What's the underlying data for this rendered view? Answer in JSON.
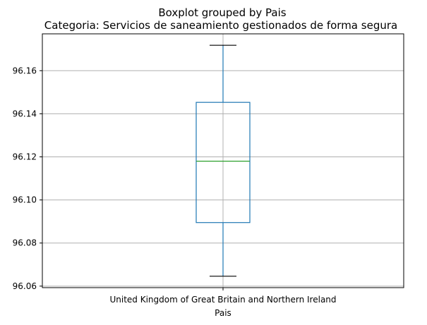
{
  "chart_data": {
    "type": "boxplot",
    "suptitle": "Boxplot grouped by Pais",
    "title": "Categoria: Servicios de saneamiento gestionados de forma segura",
    "xlabel": "Pais",
    "ylabel": "",
    "categories": [
      "United Kingdom of Great Britain and Northern Ireland"
    ],
    "boxes": [
      {
        "category": "United Kingdom of Great Britain and Northern Ireland",
        "whisker_low": 96.0646,
        "q1": 96.0895,
        "median": 96.118,
        "q3": 96.1453,
        "whisker_high": 96.1718
      }
    ],
    "ylim": [
      96.0593,
      96.1771
    ],
    "yticks": [
      96.06,
      96.08,
      96.1,
      96.12,
      96.14,
      96.16
    ],
    "ytick_labels": [
      "96.06",
      "96.08",
      "96.10",
      "96.12",
      "96.14",
      "96.16"
    ],
    "grid": true,
    "colors": {
      "box": "#1f77b4",
      "median": "#2ca02c",
      "whisker": "#1f77b4",
      "cap": "#000000",
      "grid": "#b0b0b0",
      "axes": "#000000"
    }
  }
}
